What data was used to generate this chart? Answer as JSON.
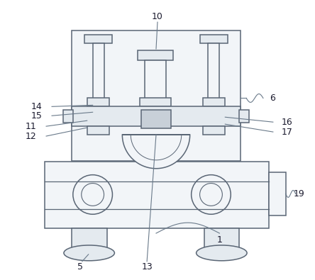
{
  "bg_color": "#ffffff",
  "lc": "#5a6675",
  "lc_ann": "#6a7a8a",
  "fc_light": "#f2f5f8",
  "fc_mid": "#e4eaef",
  "fc_dark": "#8a9aaa",
  "fc_gray": "#c8d0d8"
}
